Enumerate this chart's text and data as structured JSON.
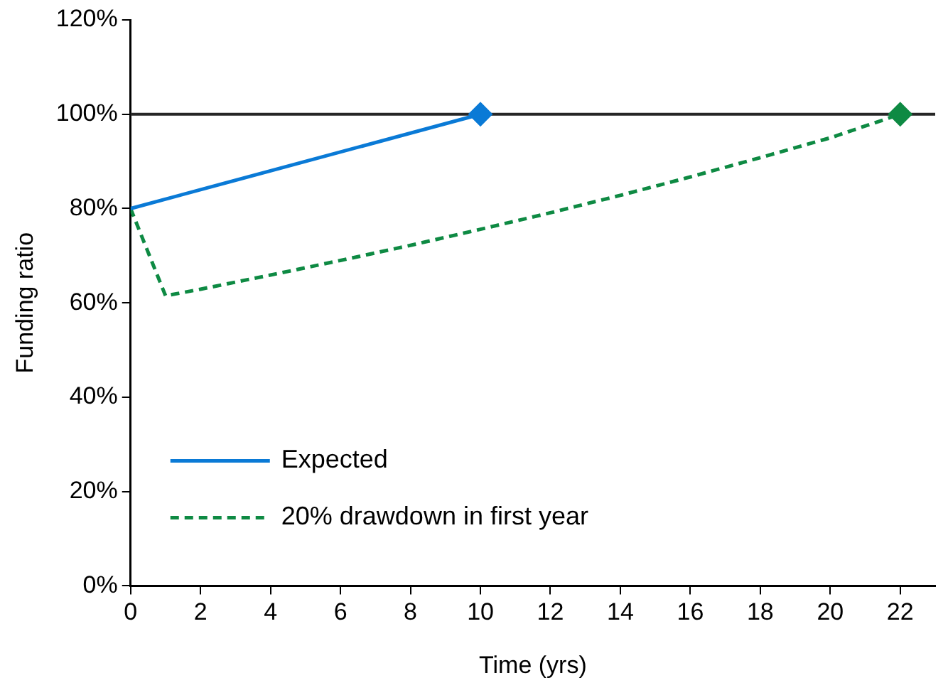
{
  "chart_data": {
    "type": "line",
    "xlabel": "Time (yrs)",
    "ylabel": "Funding ratio",
    "xlim": [
      0,
      23
    ],
    "xticks": [
      0,
      2,
      4,
      6,
      8,
      10,
      12,
      14,
      16,
      18,
      20,
      22
    ],
    "ylim": [
      0,
      120
    ],
    "yticks": [
      {
        "value": 0,
        "label": "0%"
      },
      {
        "value": 20,
        "label": "20%"
      },
      {
        "value": 40,
        "label": "40%"
      },
      {
        "value": 60,
        "label": "60%"
      },
      {
        "value": 80,
        "label": "80%"
      },
      {
        "value": 100,
        "label": "100%"
      },
      {
        "value": 120,
        "label": "120%"
      }
    ],
    "grid": false,
    "legend": "bottom left",
    "marker": "none",
    "ref_lines": [
      {
        "axis": "y",
        "value": 100,
        "color": "#262626"
      }
    ],
    "series": [
      {
        "name": "Expected",
        "color": "#0a7ad6",
        "x": [
          0,
          10
        ],
        "values": [
          80,
          100
        ],
        "line_style": "solid"
      },
      {
        "name": "20% drawdown in first year",
        "color": "#0e8a43",
        "x": [
          0,
          1,
          2,
          4,
          6,
          8,
          10,
          12,
          14,
          16,
          18,
          20,
          22
        ],
        "values": [
          80,
          61.5,
          62.9,
          65.9,
          69,
          72.2,
          75.6,
          79.1,
          82.8,
          86.7,
          90.8,
          95,
          100
        ],
        "line_style": "dashed"
      },
      {
        "type": "scatter",
        "color": "#0a7ad6",
        "x": [
          10
        ],
        "values": [
          100
        ],
        "marker": "diamond"
      },
      {
        "type": "scatter",
        "color": "#0e8a43",
        "x": [
          22
        ],
        "values": [
          100
        ],
        "marker": "diamond"
      }
    ]
  }
}
